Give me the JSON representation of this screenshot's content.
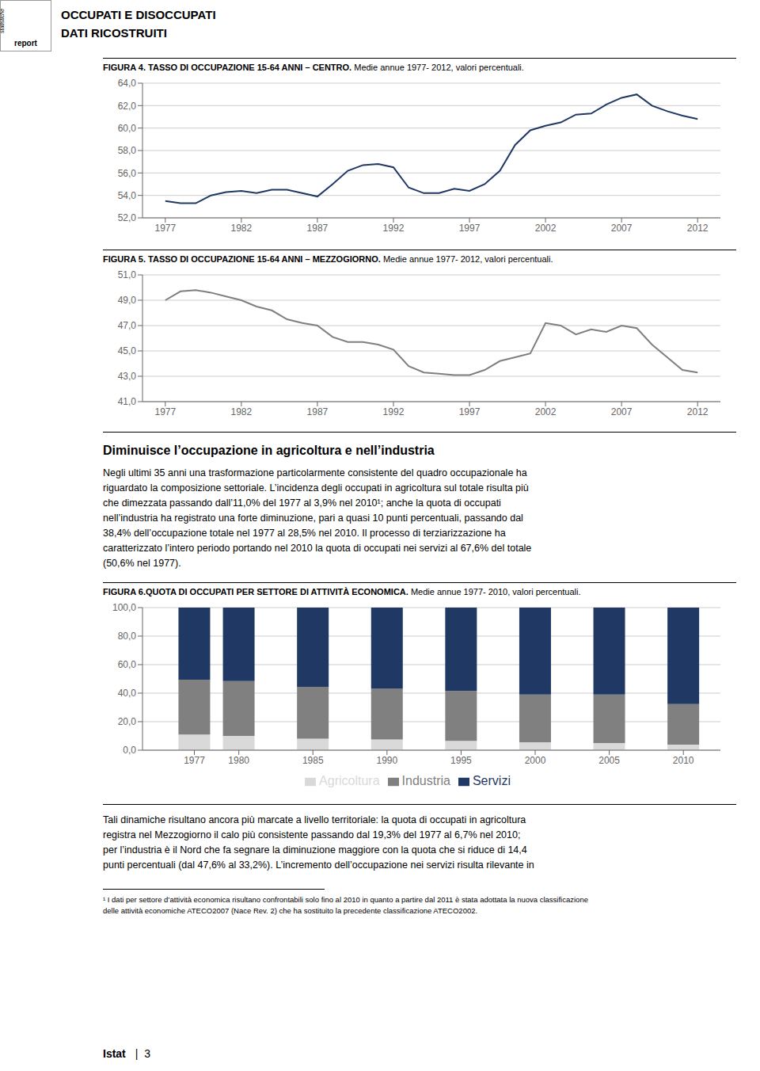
{
  "annotations": [
    "statistiche",
    "report",
    "OCCUPATI E DISOCCUPATI",
    "DATI RICOSTRUITI",
    "Diminuisce l’occupazione in agricoltura e nell’industria",
    "Negli ultimi 35 anni una trasformazione particolarmente consistente del quadro occupazionale ha",
    "riguardato la composizione settoriale. L’incidenza degli occupati in agricoltura sul totale risulta più",
    "che dimezzata passando dall’11,0% del 1977 al 3,9% nel 2010¹; anche la quota di occupati",
    "nell’industria ha registrato una forte diminuzione, pari a quasi 10 punti percentuali, passando dal",
    "38,4% dell’occupazione totale nel 1977 al 28,5% nel 2010. Il processo di terziarizzazione ha",
    "caratterizzato l’intero periodo portando nel 2010 la quota di occupati nei servizi al 67,6% del totale",
    "(50,6% nel 1977).",
    "Tali dinamiche risultano ancora più marcate a livello territoriale: la quota di occupati in agricoltura",
    "registra nel Mezzogiorno il calo più consistente passando dal 19,3% del 1977 al 6,7% nel 2010;",
    "per l’industria è il Nord che fa segnare la diminuzione maggiore con la quota che si riduce di 14,4",
    "punti percentuali (dal 47,6% al 33,2%). L’incremento dell’occupazione nei servizi risulta rilevante in",
    "¹ I dati per settore d’attività economica risultano confrontabili solo fino al 2010 in quanto a partire dal 2011 è stata adottata la nuova classificazione",
    "delle attività economiche ATECO2007 (Nace Rev. 2) che ha sostituito la precedente classificazione ATECO2002.",
    "Istat",
    "|  3"
  ],
  "chart_data": [
    {
      "type": "line",
      "title": "FIGURA 4. TASSO DI OCCUPAZIONE 15-64 ANNI – CENTRO.",
      "subtitle": "Medie annue 1977- 2012, valori percentuali.",
      "x": [
        1977,
        1978,
        1979,
        1980,
        1981,
        1982,
        1983,
        1984,
        1985,
        1986,
        1987,
        1988,
        1989,
        1990,
        1991,
        1992,
        1993,
        1994,
        1995,
        1996,
        1997,
        1998,
        1999,
        2000,
        2001,
        2002,
        2003,
        2004,
        2005,
        2006,
        2007,
        2008,
        2009,
        2010,
        2011,
        2012
      ],
      "values": [
        53.5,
        53.3,
        53.3,
        54.0,
        54.3,
        54.4,
        54.2,
        54.5,
        54.5,
        54.2,
        53.9,
        55.0,
        56.2,
        56.7,
        56.8,
        56.5,
        54.7,
        54.2,
        54.2,
        54.6,
        54.4,
        55.0,
        56.2,
        58.5,
        59.8,
        60.2,
        60.5,
        61.2,
        61.3,
        62.1,
        62.7,
        63.0,
        62.0,
        61.5,
        61.1,
        60.8
      ],
      "color": "#1f3864",
      "xlim": [
        1975.5,
        2013.5
      ],
      "xticks": [
        1977,
        1982,
        1987,
        1992,
        1997,
        2002,
        2007,
        2012
      ],
      "ylim": [
        52,
        64
      ],
      "yticks": [
        {
          "value": 52,
          "label": "52,0"
        },
        {
          "value": 54,
          "label": "54,0"
        },
        {
          "value": 56,
          "label": "56,0"
        },
        {
          "value": 58,
          "label": "58,0"
        },
        {
          "value": 60,
          "label": "60,0"
        },
        {
          "value": 62,
          "label": "62,0"
        },
        {
          "value": 64,
          "label": "64,0"
        }
      ],
      "grid": true
    },
    {
      "type": "line",
      "title": "FIGURA 5. TASSO DI OCCUPAZIONE 15-64 ANNI – MEZZOGIORNO.",
      "subtitle": "Medie annue 1977- 2012, valori percentuali.",
      "x": [
        1977,
        1978,
        1979,
        1980,
        1981,
        1982,
        1983,
        1984,
        1985,
        1986,
        1987,
        1988,
        1989,
        1990,
        1991,
        1992,
        1993,
        1994,
        1995,
        1996,
        1997,
        1998,
        1999,
        2000,
        2001,
        2002,
        2003,
        2004,
        2005,
        2006,
        2007,
        2008,
        2009,
        2010,
        2011,
        2012
      ],
      "values": [
        49.0,
        49.7,
        49.8,
        49.6,
        49.3,
        49.0,
        48.5,
        48.2,
        47.5,
        47.2,
        47.0,
        46.1,
        45.7,
        45.7,
        45.5,
        45.1,
        43.8,
        43.3,
        43.2,
        43.1,
        43.1,
        43.5,
        44.2,
        44.5,
        44.8,
        47.2,
        47.0,
        46.3,
        46.7,
        46.5,
        47.0,
        46.8,
        45.5,
        44.5,
        43.5,
        43.3
      ],
      "color": "#7f7f7f",
      "xlim": [
        1975.5,
        2013.5
      ],
      "xticks": [
        1977,
        1982,
        1987,
        1992,
        1997,
        2002,
        2007,
        2012
      ],
      "ylim": [
        41,
        51
      ],
      "yticks": [
        {
          "value": 41,
          "label": "41,0"
        },
        {
          "value": 43,
          "label": "43,0"
        },
        {
          "value": 45,
          "label": "45,0"
        },
        {
          "value": 47,
          "label": "47,0"
        },
        {
          "value": 49,
          "label": "49,0"
        },
        {
          "value": 51,
          "label": "51,0"
        }
      ],
      "grid": true
    },
    {
      "type": "bar",
      "stacked": true,
      "title": "FIGURA 6.QUOTA DI OCCUPATI PER SETTORE DI ATTIVITÀ ECONOMICA.",
      "subtitle": "Medie annue 1977- 2010, valori percentuali.",
      "x": [
        1977,
        1980,
        1985,
        1990,
        1995,
        2000,
        2005,
        2010
      ],
      "series": [
        {
          "name": "Agricoltura",
          "color": "#d9d9d9",
          "values": [
            11.0,
            10.0,
            8.0,
            7.5,
            6.5,
            5.5,
            5.0,
            3.9
          ]
        },
        {
          "name": "Industria",
          "color": "#808080",
          "values": [
            38.4,
            38.5,
            36.5,
            35.5,
            35.0,
            33.5,
            34.0,
            28.5
          ]
        },
        {
          "name": "Servizi",
          "color": "#1f3864",
          "values": [
            50.6,
            51.5,
            55.5,
            57.0,
            58.5,
            61.0,
            61.0,
            67.6
          ]
        }
      ],
      "xlim": [
        1973.5,
        2012.5
      ],
      "xticks": [
        1977,
        1980,
        1985,
        1990,
        1995,
        2000,
        2005,
        2010
      ],
      "ylim": [
        0,
        100
      ],
      "yticks": [
        {
          "value": 0,
          "label": "0,0"
        },
        {
          "value": 20,
          "label": "20,0"
        },
        {
          "value": 40,
          "label": "40,0"
        },
        {
          "value": 60,
          "label": "60,0"
        },
        {
          "value": 80,
          "label": "80,0"
        },
        {
          "value": 100,
          "label": "100,0"
        }
      ],
      "grid": true,
      "legend": "bottom"
    }
  ]
}
